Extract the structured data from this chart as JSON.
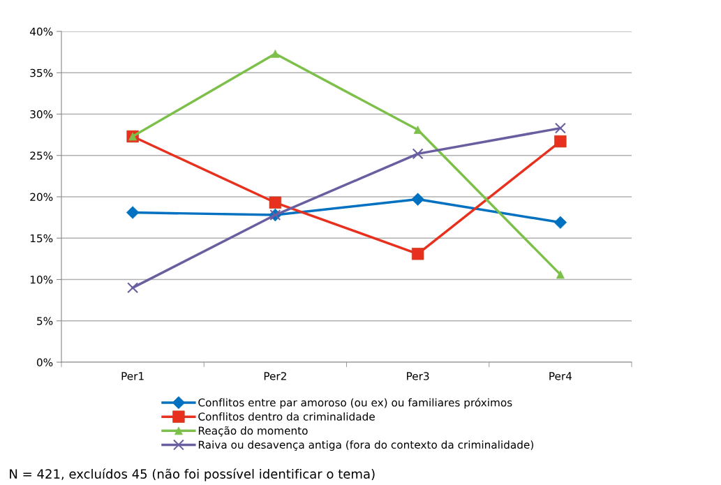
{
  "chart_data": {
    "type": "line",
    "categories": [
      "Per1",
      "Per2",
      "Per3",
      "Per4"
    ],
    "series": [
      {
        "name": "Conflitos entre par amoroso (ou ex) ou familiares próximos",
        "color": "#0070c0",
        "marker": "diamond",
        "values": [
          18.1,
          17.8,
          19.7,
          16.9
        ]
      },
      {
        "name": "Conflitos dentro da criminalidade",
        "color": "#e8301e",
        "marker": "square",
        "values": [
          27.3,
          19.3,
          13.1,
          26.7
        ]
      },
      {
        "name": "Reação do momento",
        "color": "#7cc04a",
        "marker": "triangle",
        "values": [
          27.3,
          37.3,
          28.1,
          10.6
        ]
      },
      {
        "name": "Raiva ou desavença antiga (fora do contexto da criminalidade)",
        "color": "#6a5ea0",
        "marker": "cross",
        "values": [
          9.0,
          17.8,
          25.2,
          28.3
        ]
      }
    ],
    "ylim": [
      0,
      40
    ],
    "yticks": [
      {
        "value": 0,
        "label": "0%"
      },
      {
        "value": 5,
        "label": "5%"
      },
      {
        "value": 10,
        "label": "10%"
      },
      {
        "value": 15,
        "label": "15%"
      },
      {
        "value": 20,
        "label": "20%"
      },
      {
        "value": 25,
        "label": "25%"
      },
      {
        "value": 30,
        "label": "30%"
      },
      {
        "value": 35,
        "label": "35%"
      },
      {
        "value": 40,
        "label": "40%"
      }
    ],
    "grid": "y",
    "legend": "bottom",
    "line_style": "solid",
    "annotations": [
      "N = 421, excluídos 45 (não foi possível identificar o tema)"
    ]
  }
}
